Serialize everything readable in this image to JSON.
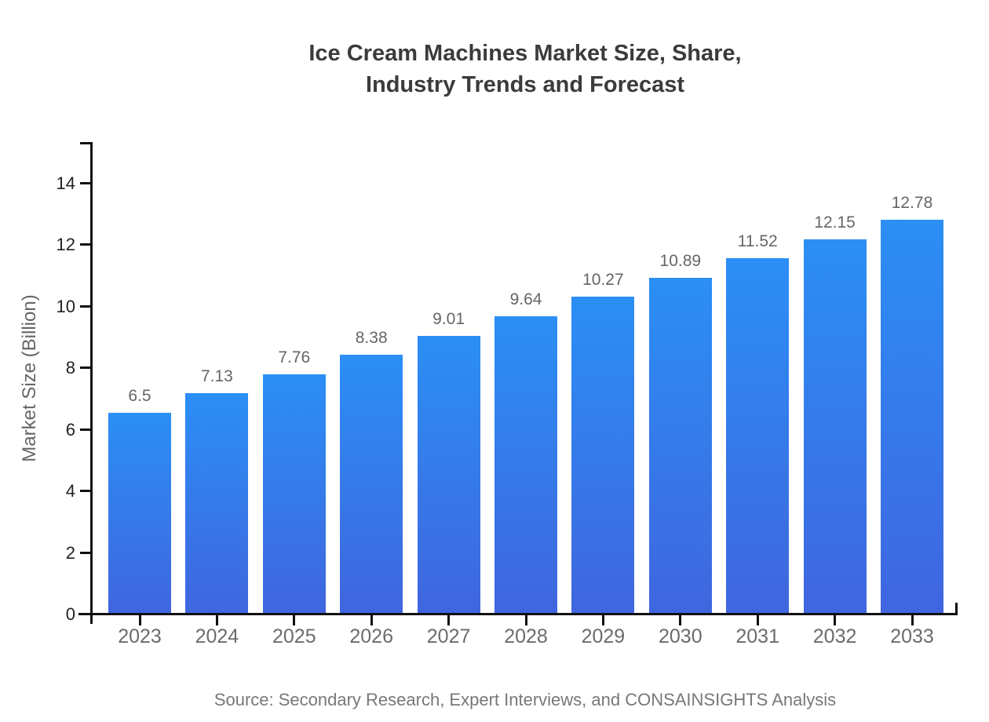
{
  "page": {
    "background": "#ffffff"
  },
  "chart_data": {
    "type": "bar",
    "title_lines": [
      "Ice Cream Machines Market Size, Share,",
      "Industry Trends and Forecast"
    ],
    "categories": [
      "2023",
      "2024",
      "2025",
      "2026",
      "2027",
      "2028",
      "2029",
      "2030",
      "2031",
      "2032",
      "2033"
    ],
    "values": [
      6.5,
      7.13,
      7.76,
      8.38,
      9.01,
      9.64,
      10.27,
      10.89,
      11.52,
      12.15,
      12.78
    ],
    "value_labels": [
      "6.5",
      "7.13",
      "7.76",
      "8.38",
      "9.01",
      "9.64",
      "10.27",
      "10.89",
      "11.52",
      "12.15",
      "12.78"
    ],
    "xlabel": "",
    "ylabel": "Market Size (Billion)",
    "yticks": [
      0,
      2,
      4,
      6,
      8,
      10,
      12,
      14
    ],
    "ylim": [
      0,
      15.3
    ],
    "grid": false,
    "legend": "none",
    "source": "Source: Secondary Research, Expert Interviews, and CONSAINSIGHTS Analysis",
    "colors": {
      "bar_gradient_top": "#2B8FF5",
      "bar_gradient_bottom": "#4066DF",
      "axis": "#111111",
      "y_tick_label": "#222222",
      "x_tick_label": "#6B6B6B",
      "value_label": "#666666",
      "title": "#3B3B3B",
      "y_axis_title": "#666666",
      "source": "#787878"
    }
  }
}
